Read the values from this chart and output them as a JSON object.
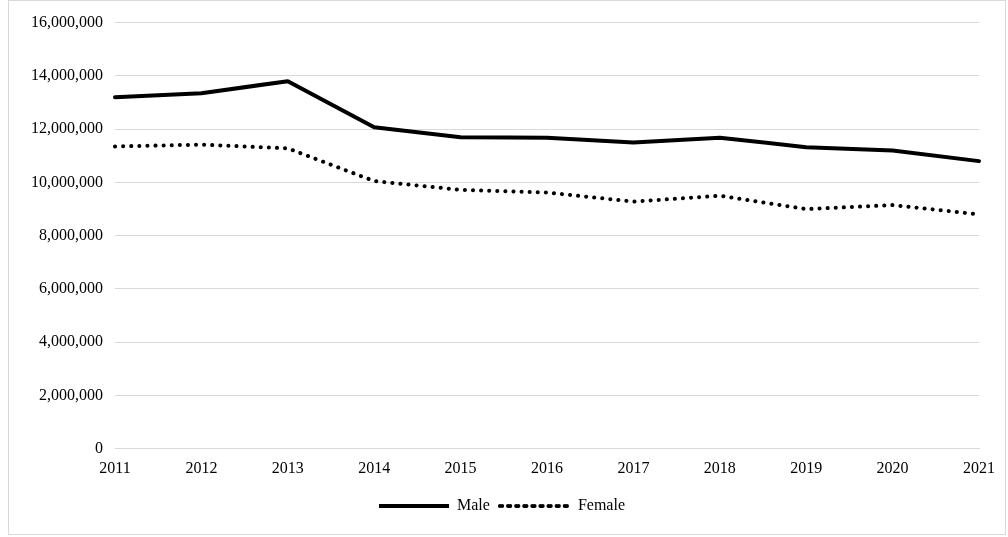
{
  "chart_data": {
    "type": "line",
    "categories": [
      "2011",
      "2012",
      "2013",
      "2014",
      "2015",
      "2016",
      "2017",
      "2018",
      "2019",
      "2020",
      "2021"
    ],
    "series": [
      {
        "name": "Male",
        "color": "#000000",
        "line_style": "solid",
        "values": [
          13200000,
          13350000,
          13800000,
          12070000,
          11700000,
          11680000,
          11500000,
          11680000,
          11320000,
          11200000,
          10800000
        ]
      },
      {
        "name": "Female",
        "color": "#000000",
        "line_style": "dotted",
        "values": [
          11350000,
          11420000,
          11280000,
          10050000,
          9720000,
          9620000,
          9280000,
          9500000,
          9000000,
          9150000,
          8800000
        ]
      }
    ],
    "ylim": [
      0,
      16000000
    ],
    "yticks": [
      0,
      {
        "value": 2000000,
        "label": "2,000,000"
      },
      {
        "value": 4000000,
        "label": "4,000,000"
      },
      {
        "value": 6000000,
        "label": "6,000,000"
      },
      {
        "value": 8000000,
        "label": "8,000,000"
      },
      {
        "value": 10000000,
        "label": "10,000,000"
      },
      {
        "value": 12000000,
        "label": "12,000,000"
      },
      {
        "value": 14000000,
        "label": "14,000,000"
      },
      {
        "value": 16000000,
        "label": "16,000,000"
      }
    ],
    "grid": "y",
    "legend": "bottom",
    "marker": "none"
  }
}
